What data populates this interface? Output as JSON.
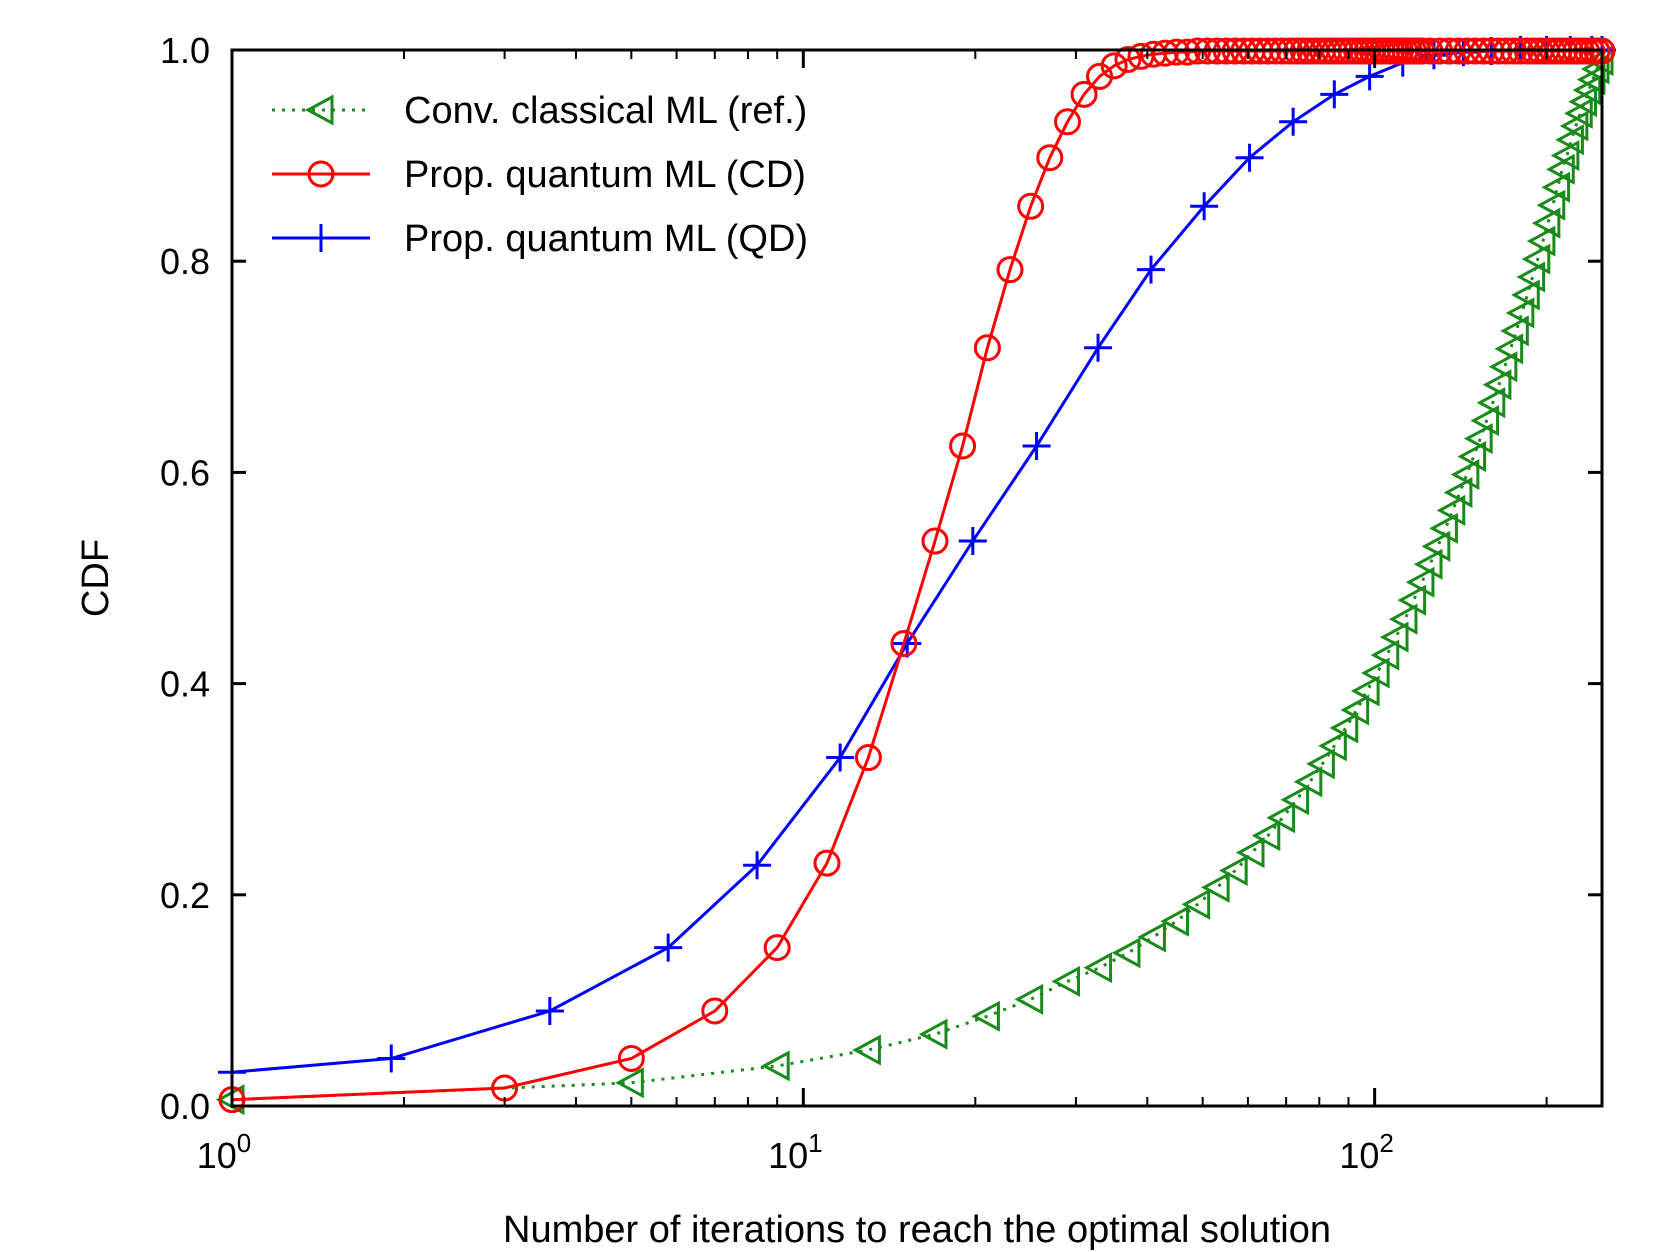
{
  "chart_data": {
    "type": "line",
    "xscale": "log",
    "xlim": [
      1,
      250
    ],
    "ylim": [
      0,
      1
    ],
    "xlabel": "Number of iterations to reach the optimal solution",
    "ylabel": "CDF",
    "xticks": [
      {
        "value": 1,
        "base": "10",
        "exp": "0"
      },
      {
        "value": 10,
        "base": "10",
        "exp": "1"
      },
      {
        "value": 100,
        "base": "10",
        "exp": "2"
      }
    ],
    "yticks": [
      "0.0",
      "0.2",
      "0.4",
      "0.6",
      "0.8",
      "1.0"
    ],
    "legend_position": "top-left",
    "series": [
      {
        "name": "Conv. classical ML (ref.)",
        "color": "#1a8a1a",
        "line": "dotted",
        "marker": "triangle-left",
        "x": [
          1,
          5,
          9,
          13,
          17,
          21,
          25,
          29,
          33,
          37,
          41,
          45,
          49,
          53,
          57,
          61,
          65,
          69,
          73,
          77,
          81,
          85,
          89,
          93,
          97,
          101,
          105,
          109,
          113,
          117,
          121,
          125,
          129,
          133,
          137,
          141,
          145,
          149,
          153,
          157,
          161,
          165,
          169,
          173,
          177,
          181,
          185,
          189,
          193,
          197,
          201,
          205,
          209,
          213,
          217,
          221,
          225,
          229,
          233,
          237,
          241,
          245,
          249
        ],
        "y": [
          0.006,
          0.022,
          0.038,
          0.053,
          0.068,
          0.085,
          0.101,
          0.118,
          0.131,
          0.145,
          0.16,
          0.175,
          0.191,
          0.207,
          0.223,
          0.24,
          0.256,
          0.273,
          0.29,
          0.307,
          0.324,
          0.341,
          0.358,
          0.375,
          0.393,
          0.41,
          0.427,
          0.444,
          0.461,
          0.479,
          0.496,
          0.513,
          0.53,
          0.547,
          0.564,
          0.581,
          0.598,
          0.615,
          0.632,
          0.649,
          0.666,
          0.683,
          0.7,
          0.717,
          0.734,
          0.751,
          0.768,
          0.785,
          0.802,
          0.819,
          0.836,
          0.853,
          0.87,
          0.887,
          0.9,
          0.915,
          0.928,
          0.94,
          0.951,
          0.962,
          0.972,
          0.982,
          0.99
        ]
      },
      {
        "name": "Prop. quantum ML (CD)",
        "color": "#ff0000",
        "line": "solid",
        "marker": "circle",
        "x": [
          1,
          3,
          5,
          7,
          9,
          11,
          13,
          15,
          17,
          19,
          21,
          23,
          25,
          27,
          29,
          31,
          33,
          35,
          37,
          39,
          41,
          43,
          45,
          47,
          49,
          51,
          53,
          55,
          57,
          59,
          61,
          63,
          65,
          67,
          69,
          71,
          73,
          75,
          77,
          79,
          81,
          83,
          85,
          87,
          89,
          91,
          93,
          95,
          97,
          99,
          101,
          103,
          105,
          107,
          109,
          111,
          113,
          115,
          117,
          119,
          121,
          125,
          130,
          135,
          140,
          145,
          150,
          155,
          160,
          165,
          170,
          175,
          180,
          185,
          190,
          195,
          200,
          205,
          210,
          215,
          220,
          225,
          230,
          235,
          240,
          245,
          250
        ],
        "y": [
          0.006,
          0.017,
          0.045,
          0.09,
          0.15,
          0.23,
          0.33,
          0.438,
          0.535,
          0.625,
          0.718,
          0.792,
          0.852,
          0.898,
          0.932,
          0.958,
          0.975,
          0.985,
          0.991,
          0.994,
          0.996,
          0.997,
          0.998,
          0.998,
          0.999,
          0.999,
          0.999,
          0.999,
          0.999,
          0.999,
          0.999,
          0.999,
          0.999,
          0.999,
          0.999,
          0.999,
          0.999,
          0.999,
          0.999,
          0.999,
          0.999,
          0.999,
          0.999,
          0.999,
          0.999,
          0.999,
          0.999,
          0.999,
          0.999,
          0.999,
          0.999,
          0.999,
          0.999,
          0.999,
          0.999,
          0.999,
          0.999,
          0.999,
          0.999,
          0.999,
          0.999,
          0.999,
          0.999,
          0.999,
          0.999,
          0.999,
          0.999,
          0.999,
          0.999,
          0.999,
          0.999,
          0.999,
          0.999,
          0.999,
          0.999,
          0.999,
          0.999,
          0.999,
          0.999,
          0.999,
          0.999,
          0.999,
          0.999,
          0.999,
          0.999,
          0.999,
          0.999
        ]
      },
      {
        "name": "Prop. quantum ML (QD)",
        "color": "#0000ff",
        "line": "solid",
        "marker": "plus",
        "x": [
          1,
          1.9,
          3.6,
          5.8,
          8.3,
          11.6,
          15.2,
          19.8,
          25.6,
          32.8,
          40.6,
          50.3,
          60.4,
          72,
          85,
          98,
          112,
          127,
          143,
          160,
          180,
          200,
          220,
          240,
          250
        ],
        "y": [
          0.032,
          0.045,
          0.09,
          0.15,
          0.228,
          0.33,
          0.438,
          0.535,
          0.625,
          0.718,
          0.792,
          0.852,
          0.898,
          0.932,
          0.958,
          0.975,
          0.988,
          0.995,
          0.998,
          0.999,
          1.0,
          1.0,
          1.0,
          1.0,
          1.0
        ]
      }
    ]
  }
}
